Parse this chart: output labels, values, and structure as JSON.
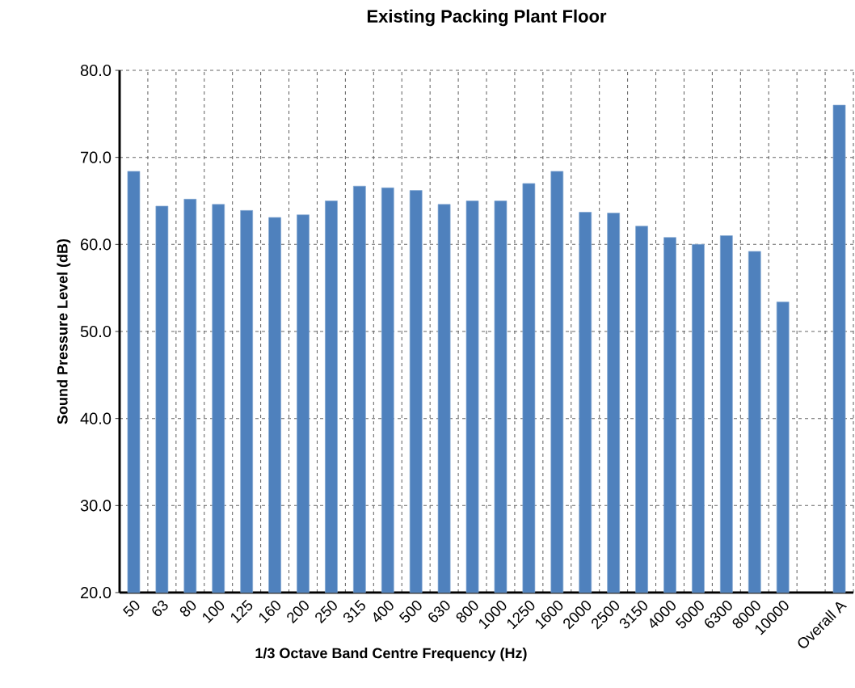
{
  "chart_data": {
    "type": "bar",
    "title": "Existing Packing Plant Floor",
    "xlabel": "1/3 Octave Band Centre Frequency (Hz)",
    "ylabel": "Sound Pressure Level (dB)",
    "categories": [
      "50",
      "63",
      "80",
      "100",
      "125",
      "160",
      "200",
      "250",
      "315",
      "400",
      "500",
      "630",
      "800",
      "1000",
      "1250",
      "1600",
      "2000",
      "2500",
      "3150",
      "4000",
      "5000",
      "6300",
      "8000",
      "10000",
      null,
      "Overall A"
    ],
    "values": [
      68.4,
      64.4,
      65.2,
      64.6,
      63.9,
      63.1,
      63.4,
      65.0,
      66.7,
      66.5,
      66.2,
      64.6,
      65.0,
      65.0,
      67.0,
      68.4,
      63.7,
      63.6,
      62.1,
      60.8,
      60.0,
      61.0,
      59.2,
      53.4,
      null,
      76.0
    ],
    "color": "#4f81bd",
    "ylim": [
      20,
      80
    ],
    "yticks": [
      {
        "value": 20,
        "label": "20.0"
      },
      {
        "value": 30,
        "label": "30.0"
      },
      {
        "value": 40,
        "label": "40.0"
      },
      {
        "value": 50,
        "label": "50.0"
      },
      {
        "value": 60,
        "label": "60.0"
      },
      {
        "value": 70,
        "label": "70.0"
      },
      {
        "value": 80,
        "label": "80.0"
      }
    ],
    "grid": true
  }
}
